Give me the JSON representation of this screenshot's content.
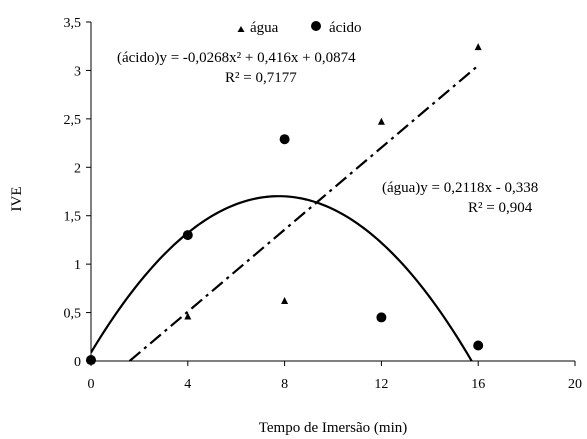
{
  "chart_data": {
    "type": "scatter",
    "xlabel": "Tempo de Imersão (min)",
    "ylabel": "IVE",
    "xlim": [
      0,
      20
    ],
    "ylim": [
      0,
      3.5
    ],
    "x_ticks": [
      "0",
      "4",
      "8",
      "12",
      "16",
      "20"
    ],
    "y_ticks": [
      "0",
      "0,5",
      "1",
      "1,5",
      "2",
      "2,5",
      "3",
      "3,5"
    ],
    "grid": false,
    "legend_position": "top-center",
    "series": [
      {
        "name": "água",
        "marker": "triangle",
        "x": [
          0,
          4,
          8,
          12,
          16
        ],
        "y": [
          0.0,
          0.46,
          0.62,
          2.47,
          3.24
        ],
        "fit": {
          "type": "linear",
          "a": 0.2118,
          "b": -0.338,
          "style": "dash-dot"
        }
      },
      {
        "name": "ácido",
        "marker": "circle",
        "x": [
          0,
          4,
          8,
          12,
          16
        ],
        "y": [
          0.01,
          1.3,
          2.29,
          0.45,
          0.16
        ],
        "fit": {
          "type": "quadratic",
          "a": -0.0268,
          "b": 0.416,
          "c": 0.0874,
          "style": "solid"
        }
      }
    ],
    "annotations": {
      "acido_eq": "(ácido)y = -0,0268x² + 0,416x + 0,0874",
      "acido_r2": "R² = 0,7177",
      "agua_eq": "(água)y = 0,2118x - 0,338",
      "agua_r2": "R² = 0,904"
    }
  }
}
